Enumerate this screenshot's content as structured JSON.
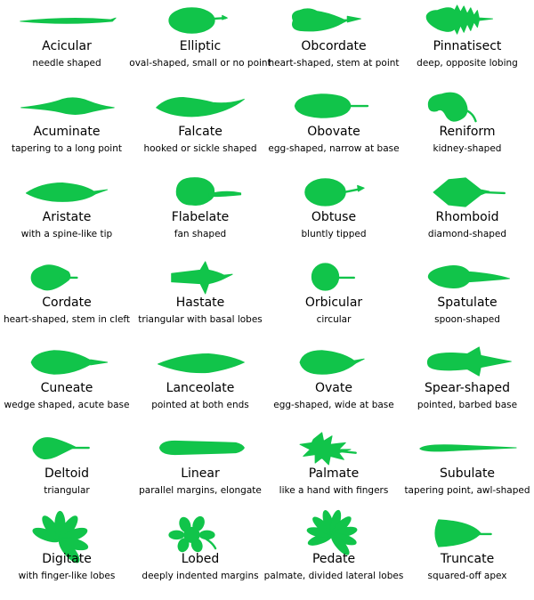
{
  "leaf_color": "#11c44a",
  "leaves": [
    {
      "name": "Acicular",
      "desc": "needle shaped",
      "icon": "acicular-leaf-icon"
    },
    {
      "name": "Elliptic",
      "desc": "oval-shaped, small or no point",
      "icon": "elliptic-leaf-icon"
    },
    {
      "name": "Obcordate",
      "desc": "heart-shaped, stem at point",
      "icon": "obcordate-leaf-icon"
    },
    {
      "name": "Pinnatisect",
      "desc": "deep, opposite lobing",
      "icon": "pinnatisect-leaf-icon"
    },
    {
      "name": "Acuminate",
      "desc": "tapering to a long point",
      "icon": "acuminate-leaf-icon"
    },
    {
      "name": "Falcate",
      "desc": "hooked or sickle shaped",
      "icon": "falcate-leaf-icon"
    },
    {
      "name": "Obovate",
      "desc": "egg-shaped, narrow at base",
      "icon": "obovate-leaf-icon"
    },
    {
      "name": "Reniform",
      "desc": "kidney-shaped",
      "icon": "reniform-leaf-icon"
    },
    {
      "name": "Aristate",
      "desc": "with a spine-like tip",
      "icon": "aristate-leaf-icon"
    },
    {
      "name": "Flabelate",
      "desc": "fan shaped",
      "icon": "flabelate-leaf-icon"
    },
    {
      "name": "Obtuse",
      "desc": "bluntly tipped",
      "icon": "obtuse-leaf-icon"
    },
    {
      "name": "Rhomboid",
      "desc": "diamond-shaped",
      "icon": "rhomboid-leaf-icon"
    },
    {
      "name": "Cordate",
      "desc": "heart-shaped, stem in cleft",
      "icon": "cordate-leaf-icon"
    },
    {
      "name": "Hastate",
      "desc": "triangular with basal lobes",
      "icon": "hastate-leaf-icon"
    },
    {
      "name": "Orbicular",
      "desc": "circular",
      "icon": "orbicular-leaf-icon"
    },
    {
      "name": "Spatulate",
      "desc": "spoon-shaped",
      "icon": "spatulate-leaf-icon"
    },
    {
      "name": "Cuneate",
      "desc": "wedge shaped, acute base",
      "icon": "cuneate-leaf-icon"
    },
    {
      "name": "Lanceolate",
      "desc": "pointed at both ends",
      "icon": "lanceolate-leaf-icon"
    },
    {
      "name": "Ovate",
      "desc": "egg-shaped, wide at base",
      "icon": "ovate-leaf-icon"
    },
    {
      "name": "Spear-shaped",
      "desc": "pointed, barbed base",
      "icon": "spear-shaped-leaf-icon"
    },
    {
      "name": "Deltoid",
      "desc": "triangular",
      "icon": "deltoid-leaf-icon"
    },
    {
      "name": "Linear",
      "desc": "parallel margins, elongate",
      "icon": "linear-leaf-icon"
    },
    {
      "name": "Palmate",
      "desc": "like a hand with fingers",
      "icon": "palmate-leaf-icon"
    },
    {
      "name": "Subulate",
      "desc": "tapering point, awl-shaped",
      "icon": "subulate-leaf-icon"
    },
    {
      "name": "Digitate",
      "desc": "with finger-like lobes",
      "icon": "digitate-leaf-icon"
    },
    {
      "name": "Lobed",
      "desc": "deeply indented margins",
      "icon": "lobed-leaf-icon"
    },
    {
      "name": "Pedate",
      "desc": "palmate, divided lateral lobes",
      "icon": "pedate-leaf-icon"
    },
    {
      "name": "Truncate",
      "desc": "squared-off apex",
      "icon": "truncate-leaf-icon"
    }
  ]
}
